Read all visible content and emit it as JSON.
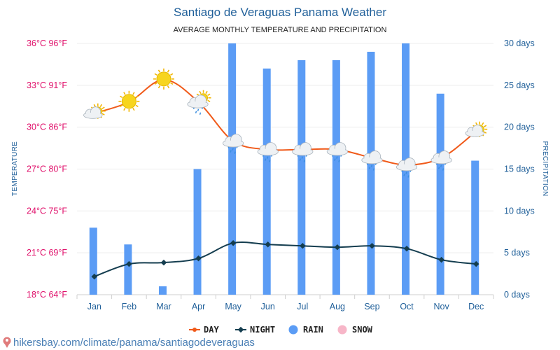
{
  "header": {
    "title": "Santiago de Veraguas Panama Weather",
    "subtitle": "AVERAGE MONTHLY TEMPERATURE AND PRECIPITATION"
  },
  "footer": {
    "source": "hikersbay.com/climate/panama/santiagodeveraguas"
  },
  "chart_data": {
    "type": "bar",
    "categories": [
      "Jan",
      "Feb",
      "Mar",
      "Apr",
      "May",
      "Jun",
      "Jul",
      "Aug",
      "Sep",
      "Oct",
      "Nov",
      "Dec"
    ],
    "series": [
      {
        "name": "DAY",
        "kind": "line",
        "axis": "left",
        "unit": "°C",
        "color": "#f05a1a",
        "values": [
          31.0,
          31.8,
          33.4,
          31.8,
          29.0,
          28.4,
          28.4,
          28.4,
          27.8,
          27.3,
          27.8,
          29.7
        ]
      },
      {
        "name": "NIGHT",
        "kind": "line",
        "axis": "left",
        "unit": "°C",
        "color": "#143d4f",
        "values": [
          19.3,
          20.2,
          20.3,
          20.6,
          21.7,
          21.6,
          21.5,
          21.4,
          21.5,
          21.3,
          20.5,
          20.2
        ]
      },
      {
        "name": "RAIN",
        "kind": "bar",
        "axis": "right",
        "unit": "days",
        "color": "#5b9cf5",
        "values": [
          8,
          6,
          1,
          15,
          30,
          27,
          28,
          28,
          29,
          30,
          24,
          16
        ]
      },
      {
        "name": "SNOW",
        "kind": "bar",
        "axis": "right",
        "unit": "days",
        "color": "#f7b6c8",
        "values": [
          0,
          0,
          0,
          0,
          0,
          0,
          0,
          0,
          0,
          0,
          0,
          0
        ]
      }
    ],
    "weather_icons": [
      "partly-sunny",
      "sunny",
      "sunny",
      "partly-rainy",
      "rain-cloud",
      "rain-cloud",
      "rain-cloud",
      "rain-cloud",
      "rain-cloud",
      "rain-cloud",
      "rain-cloud",
      "partly-sunny"
    ],
    "left_axis": {
      "label": "TEMPERATURE",
      "ylim": [
        18,
        36
      ],
      "ticks": [
        "18°C 64°F",
        "21°C 69°F",
        "24°C 75°F",
        "27°C 80°F",
        "30°C 86°F",
        "33°C 91°F",
        "36°C 96°F"
      ],
      "color": "#e0116b"
    },
    "right_axis": {
      "label": "PRECIPITATION",
      "ylim": [
        0,
        30
      ],
      "ticks": [
        "0 days",
        "5 days",
        "10 days",
        "15 days",
        "20 days",
        "25 days",
        "30 days"
      ],
      "color": "#1f5f99"
    },
    "grid": true,
    "legend_position": "bottom-center"
  }
}
